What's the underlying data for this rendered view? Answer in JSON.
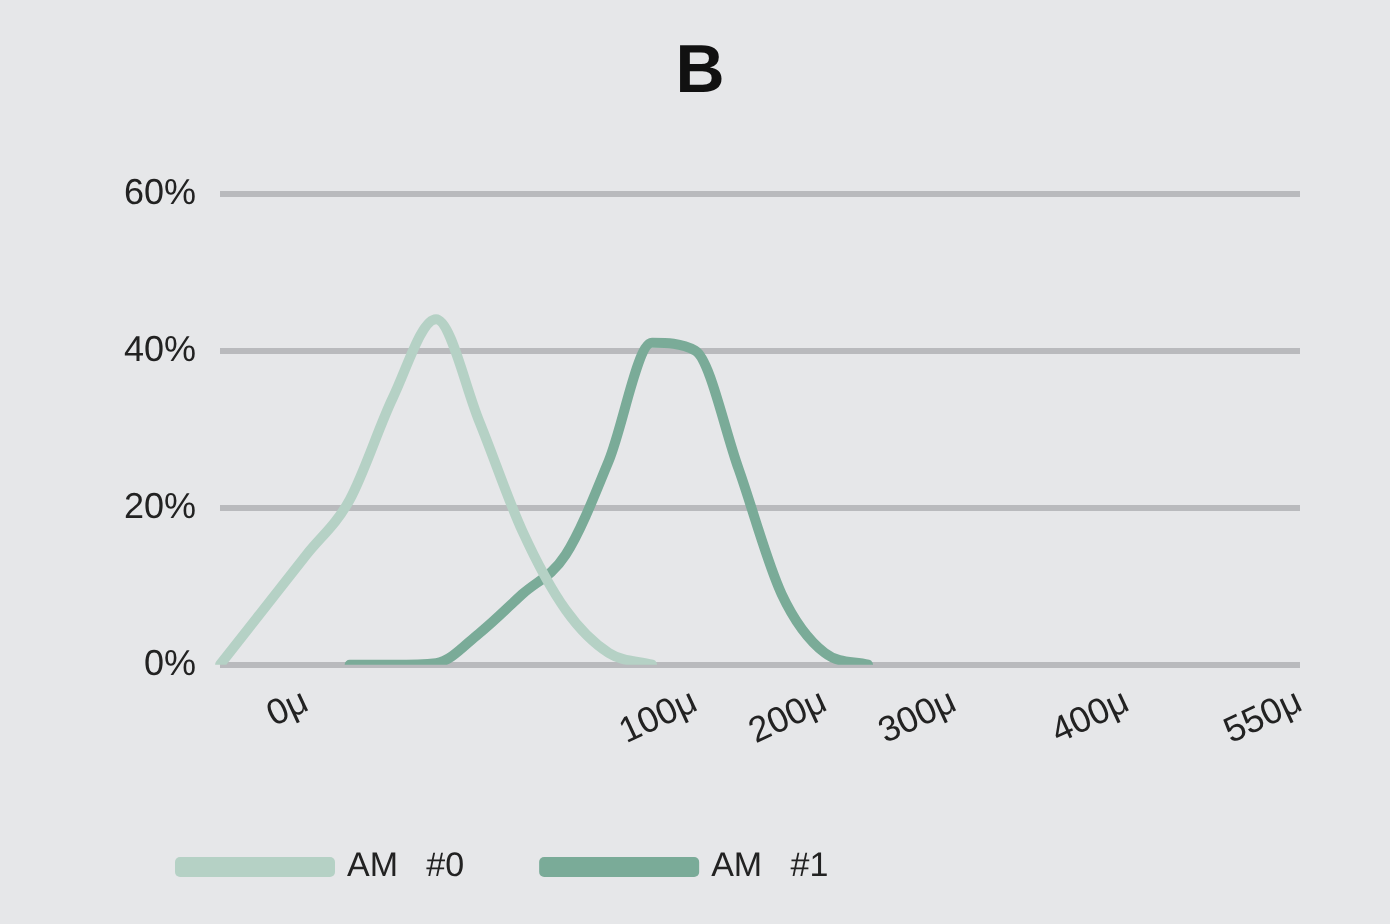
{
  "chart_data": {
    "type": "line",
    "title": "B",
    "categories": [
      null,
      null,
      "0μ",
      null,
      null,
      null,
      null,
      null,
      null,
      null,
      null,
      "100μ",
      null,
      null,
      "200μ",
      null,
      null,
      "300μ",
      null,
      null,
      null,
      "400μ",
      null,
      null,
      null,
      "550μ"
    ],
    "series": [
      {
        "name": "AM   #0",
        "color": "#b5d1c5",
        "values": [
          0,
          7,
          14,
          21,
          34,
          44,
          31,
          17,
          7,
          1.5,
          0,
          null,
          null,
          null,
          null,
          null,
          null,
          null,
          null,
          null,
          null,
          null,
          null,
          null,
          null,
          null
        ]
      },
      {
        "name": "AM   #1",
        "color": "#7aab98",
        "values": [
          null,
          null,
          null,
          0,
          0,
          0.2,
          4,
          9,
          14,
          26,
          41,
          40,
          25,
          9,
          1.5,
          0,
          null,
          null,
          null,
          null,
          null,
          null,
          null,
          null,
          null,
          null
        ]
      }
    ],
    "ylim": [
      0,
      60
    ],
    "yticks": [
      {
        "value": 0,
        "label": "0%"
      },
      {
        "value": 20,
        "label": "20%"
      },
      {
        "value": 40,
        "label": "40%"
      },
      {
        "value": 60,
        "label": "60%"
      }
    ],
    "grid": "y",
    "legend": "bottom left",
    "marker": "none",
    "line_style": "solid"
  }
}
